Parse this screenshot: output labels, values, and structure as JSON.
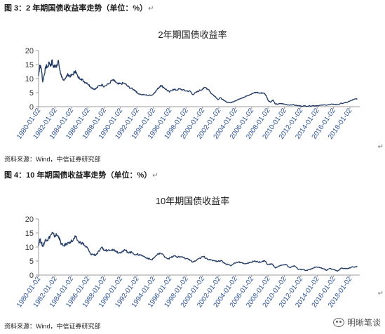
{
  "figure1": {
    "caption": "图 3：2 年期国债收益率走势（单位：%）",
    "source": "资料来源：Wind，中信证券研究部"
  },
  "figure2": {
    "caption": "图 4：10 年期国债收益率走势（单位：%）",
    "source": "资料来源：Wind，中信证券研究部"
  },
  "return_mark": "↵",
  "watermark": {
    "text": "明晰笔谈",
    "icon": "wechat-icon"
  },
  "colors": {
    "line": "#1f3864",
    "tick_x": "#2f5597",
    "axis": "#9e9e9e"
  },
  "chart_data": [
    {
      "type": "line",
      "title": "2年期国债收益率",
      "xlabel": "",
      "ylabel": "",
      "ylim": [
        0,
        20
      ],
      "yticks": [
        0,
        5,
        10,
        15,
        20
      ],
      "xlim": [
        1980.0,
        2019.2
      ],
      "xtick_labels": [
        "1980-01-02",
        "1982-01-02",
        "1984-01-02",
        "1986-01-02",
        "1988-01-02",
        "1990-01-02",
        "1992-01-02",
        "1994-01-02",
        "1996-01-02",
        "1998-01-02",
        "2000-01-02",
        "2002-01-02",
        "2004-01-02",
        "2006-01-02",
        "2008-01-02",
        "2010-01-02",
        "2012-01-02",
        "2014-01-02",
        "2016-01-02",
        "2018-01-02"
      ],
      "grid": false,
      "series": [
        {
          "name": "",
          "points": [
            [
              1980.0,
              11.0
            ],
            [
              1980.15,
              14.8
            ],
            [
              1980.35,
              13.5
            ],
            [
              1980.5,
              8.8
            ],
            [
              1980.7,
              11.5
            ],
            [
              1980.9,
              14.5
            ],
            [
              1981.1,
              14.0
            ],
            [
              1981.3,
              15.8
            ],
            [
              1981.5,
              14.5
            ],
            [
              1981.65,
              16.5
            ],
            [
              1981.8,
              14.0
            ],
            [
              1982.0,
              15.0
            ],
            [
              1982.2,
              14.0
            ],
            [
              1982.4,
              16.5
            ],
            [
              1982.6,
              13.0
            ],
            [
              1982.8,
              10.5
            ],
            [
              1983.0,
              9.5
            ],
            [
              1983.3,
              10.3
            ],
            [
              1983.6,
              11.5
            ],
            [
              1983.9,
              10.8
            ],
            [
              1984.2,
              11.5
            ],
            [
              1984.5,
              12.8
            ],
            [
              1984.8,
              10.5
            ],
            [
              1985.2,
              10.0
            ],
            [
              1985.5,
              9.0
            ],
            [
              1985.9,
              8.5
            ],
            [
              1986.3,
              7.2
            ],
            [
              1986.7,
              6.3
            ],
            [
              1987.0,
              6.4
            ],
            [
              1987.4,
              7.5
            ],
            [
              1987.8,
              7.8
            ],
            [
              1988.0,
              7.2
            ],
            [
              1988.5,
              8.0
            ],
            [
              1989.0,
              9.5
            ],
            [
              1989.3,
              9.0
            ],
            [
              1989.7,
              8.0
            ],
            [
              1990.0,
              8.2
            ],
            [
              1990.5,
              8.3
            ],
            [
              1990.9,
              7.2
            ],
            [
              1991.3,
              6.5
            ],
            [
              1991.8,
              5.8
            ],
            [
              1992.0,
              5.0
            ],
            [
              1992.5,
              4.3
            ],
            [
              1993.0,
              4.2
            ],
            [
              1993.5,
              4.0
            ],
            [
              1993.9,
              4.2
            ],
            [
              1994.2,
              5.2
            ],
            [
              1994.6,
              6.5
            ],
            [
              1994.9,
              7.6
            ],
            [
              1995.3,
              6.8
            ],
            [
              1995.7,
              5.8
            ],
            [
              1996.0,
              5.2
            ],
            [
              1996.4,
              6.2
            ],
            [
              1996.8,
              5.9
            ],
            [
              1997.2,
              6.3
            ],
            [
              1997.6,
              6.0
            ],
            [
              1998.0,
              5.6
            ],
            [
              1998.5,
              5.5
            ],
            [
              1998.8,
              4.3
            ],
            [
              1999.2,
              5.0
            ],
            [
              1999.6,
              5.7
            ],
            [
              2000.0,
              6.3
            ],
            [
              2000.4,
              6.8
            ],
            [
              2000.8,
              6.0
            ],
            [
              2001.1,
              4.6
            ],
            [
              2001.5,
              3.8
            ],
            [
              2001.9,
              2.5
            ],
            [
              2002.2,
              3.2
            ],
            [
              2002.6,
              2.2
            ],
            [
              2003.0,
              1.6
            ],
            [
              2003.5,
              1.4
            ],
            [
              2003.9,
              1.9
            ],
            [
              2004.4,
              2.7
            ],
            [
              2004.9,
              3.1
            ],
            [
              2005.3,
              3.8
            ],
            [
              2005.8,
              4.3
            ],
            [
              2006.3,
              4.9
            ],
            [
              2006.6,
              5.1
            ],
            [
              2007.0,
              4.8
            ],
            [
              2007.5,
              4.9
            ],
            [
              2007.8,
              3.8
            ],
            [
              2008.0,
              2.3
            ],
            [
              2008.3,
              1.6
            ],
            [
              2008.6,
              2.4
            ],
            [
              2008.9,
              0.9
            ],
            [
              2009.2,
              0.9
            ],
            [
              2009.6,
              1.1
            ],
            [
              2010.0,
              0.9
            ],
            [
              2010.5,
              0.6
            ],
            [
              2011.0,
              0.7
            ],
            [
              2011.5,
              0.4
            ],
            [
              2012.0,
              0.25
            ],
            [
              2012.5,
              0.25
            ],
            [
              2013.0,
              0.25
            ],
            [
              2013.5,
              0.35
            ],
            [
              2014.0,
              0.35
            ],
            [
              2014.5,
              0.5
            ],
            [
              2015.0,
              0.6
            ],
            [
              2015.5,
              0.7
            ],
            [
              2016.0,
              0.9
            ],
            [
              2016.5,
              0.7
            ],
            [
              2017.0,
              1.2
            ],
            [
              2017.5,
              1.4
            ],
            [
              2018.0,
              2.0
            ],
            [
              2018.5,
              2.6
            ],
            [
              2018.9,
              2.85
            ]
          ]
        }
      ]
    },
    {
      "type": "line",
      "title": "10年期国债收益率",
      "xlabel": "",
      "ylabel": "",
      "ylim": [
        0,
        20
      ],
      "yticks": [
        0,
        5,
        10,
        15,
        20
      ],
      "xlim": [
        1980.0,
        2019.2
      ],
      "xtick_labels": [
        "1980-01-02",
        "1982-01-02",
        "1984-01-02",
        "1986-01-02",
        "1988-01-02",
        "1990-01-02",
        "1992-01-02",
        "1994-01-02",
        "1996-01-02",
        "1998-01-02",
        "2000-01-02",
        "2002-01-02",
        "2004-01-02",
        "2006-01-02",
        "2008-01-02",
        "2010-01-02",
        "2012-01-02",
        "2014-01-02",
        "2016-01-02",
        "2018-01-02"
      ],
      "grid": false,
      "series": [
        {
          "name": "",
          "points": [
            [
              1980.0,
              10.8
            ],
            [
              1980.15,
              12.8
            ],
            [
              1980.35,
              11.5
            ],
            [
              1980.5,
              10.2
            ],
            [
              1980.7,
              11.5
            ],
            [
              1980.9,
              12.8
            ],
            [
              1981.1,
              12.5
            ],
            [
              1981.4,
              13.8
            ],
            [
              1981.7,
              15.0
            ],
            [
              1981.9,
              14.0
            ],
            [
              1982.2,
              14.3
            ],
            [
              1982.5,
              13.5
            ],
            [
              1982.7,
              11.5
            ],
            [
              1983.0,
              10.4
            ],
            [
              1983.4,
              11.0
            ],
            [
              1983.8,
              11.8
            ],
            [
              1984.2,
              12.3
            ],
            [
              1984.5,
              13.6
            ],
            [
              1984.9,
              11.7
            ],
            [
              1985.3,
              11.5
            ],
            [
              1985.7,
              10.3
            ],
            [
              1986.0,
              9.5
            ],
            [
              1986.3,
              7.6
            ],
            [
              1986.7,
              7.3
            ],
            [
              1987.0,
              7.2
            ],
            [
              1987.4,
              8.5
            ],
            [
              1987.8,
              9.8
            ],
            [
              1988.0,
              8.7
            ],
            [
              1988.5,
              8.9
            ],
            [
              1989.0,
              9.2
            ],
            [
              1989.4,
              8.7
            ],
            [
              1989.8,
              7.9
            ],
            [
              1990.2,
              8.5
            ],
            [
              1990.6,
              8.8
            ],
            [
              1990.9,
              8.2
            ],
            [
              1991.4,
              8.0
            ],
            [
              1991.9,
              7.3
            ],
            [
              1992.3,
              7.3
            ],
            [
              1992.8,
              6.7
            ],
            [
              1993.3,
              6.0
            ],
            [
              1993.8,
              5.4
            ],
            [
              1994.2,
              6.5
            ],
            [
              1994.8,
              7.9
            ],
            [
              1995.3,
              6.9
            ],
            [
              1995.8,
              5.8
            ],
            [
              1996.2,
              6.3
            ],
            [
              1996.6,
              6.8
            ],
            [
              1997.0,
              6.4
            ],
            [
              1997.5,
              6.6
            ],
            [
              1997.9,
              5.8
            ],
            [
              1998.4,
              5.6
            ],
            [
              1998.8,
              4.6
            ],
            [
              1999.2,
              5.1
            ],
            [
              1999.7,
              6.0
            ],
            [
              2000.1,
              6.6
            ],
            [
              2000.5,
              6.0
            ],
            [
              2000.9,
              5.3
            ],
            [
              2001.4,
              5.2
            ],
            [
              2001.9,
              4.9
            ],
            [
              2002.3,
              5.2
            ],
            [
              2002.8,
              4.0
            ],
            [
              2003.2,
              3.7
            ],
            [
              2003.5,
              3.3
            ],
            [
              2003.9,
              4.3
            ],
            [
              2004.4,
              4.7
            ],
            [
              2004.9,
              4.2
            ],
            [
              2005.4,
              4.1
            ],
            [
              2005.9,
              4.5
            ],
            [
              2006.4,
              5.1
            ],
            [
              2006.8,
              4.6
            ],
            [
              2007.3,
              4.8
            ],
            [
              2007.6,
              5.1
            ],
            [
              2008.0,
              3.7
            ],
            [
              2008.5,
              4.0
            ],
            [
              2008.9,
              2.5
            ],
            [
              2009.3,
              3.2
            ],
            [
              2009.7,
              3.5
            ],
            [
              2010.2,
              3.7
            ],
            [
              2010.7,
              2.6
            ],
            [
              2011.2,
              3.4
            ],
            [
              2011.7,
              2.0
            ],
            [
              2012.2,
              2.0
            ],
            [
              2012.6,
              1.6
            ],
            [
              2013.0,
              1.9
            ],
            [
              2013.5,
              2.5
            ],
            [
              2013.9,
              2.9
            ],
            [
              2014.4,
              2.6
            ],
            [
              2014.9,
              2.2
            ],
            [
              2015.1,
              1.7
            ],
            [
              2015.5,
              2.3
            ],
            [
              2016.0,
              2.0
            ],
            [
              2016.5,
              1.4
            ],
            [
              2016.9,
              2.4
            ],
            [
              2017.4,
              2.3
            ],
            [
              2017.8,
              2.4
            ],
            [
              2018.2,
              2.8
            ],
            [
              2018.6,
              2.9
            ],
            [
              2018.9,
              3.05
            ]
          ]
        }
      ]
    }
  ]
}
